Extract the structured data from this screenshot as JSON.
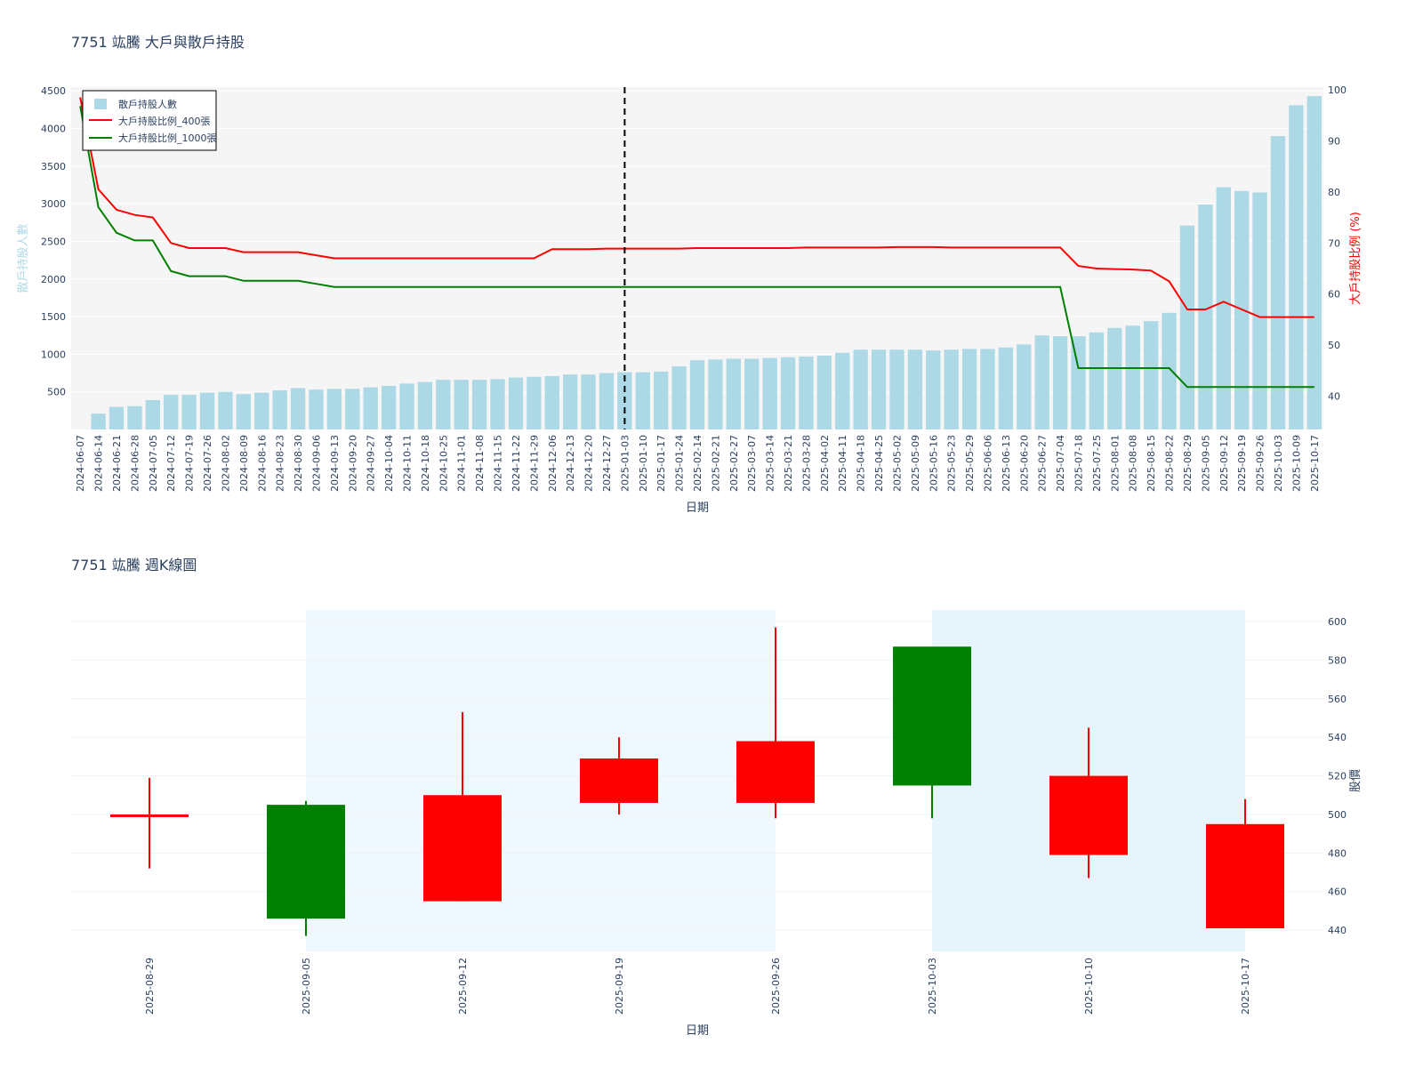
{
  "colors": {
    "bar": "#ADD8E6",
    "line400": "#FF0000",
    "line1000": "#008000",
    "up": "#FF0000",
    "down": "#008000",
    "plot_bg_top": "#F5F5F5",
    "shade": "#F0F8FF",
    "shade_dark": "#E6F4FC"
  },
  "chart_data": [
    {
      "type": "bar",
      "title": "7751 竑騰 大戶與散戶持股",
      "xlabel": "日期",
      "ylabel": "散戶持股人數",
      "y2label": "大戶持股比例 (%)",
      "ylim": [
        0,
        4550
      ],
      "y2lim": [
        33.5,
        100.5
      ],
      "yticks": [
        500,
        1000,
        1500,
        2000,
        2500,
        3000,
        3500,
        4000,
        4500
      ],
      "y2ticks": [
        40,
        50,
        60,
        70,
        80,
        90,
        100
      ],
      "legend_position": "top-left",
      "grid": true,
      "vline_date": "2025-01-03",
      "categories": [
        "2024-06-07",
        "2024-06-14",
        "2024-06-21",
        "2024-06-28",
        "2024-07-05",
        "2024-07-12",
        "2024-07-19",
        "2024-07-26",
        "2024-08-02",
        "2024-08-09",
        "2024-08-16",
        "2024-08-23",
        "2024-08-30",
        "2024-09-06",
        "2024-09-13",
        "2024-09-20",
        "2024-09-27",
        "2024-10-04",
        "2024-10-11",
        "2024-10-18",
        "2024-10-25",
        "2024-11-01",
        "2024-11-08",
        "2024-11-15",
        "2024-11-22",
        "2024-11-29",
        "2024-12-06",
        "2024-12-13",
        "2024-12-20",
        "2024-12-27",
        "2025-01-03",
        "2025-01-10",
        "2025-01-17",
        "2025-01-24",
        "2025-02-14",
        "2025-02-21",
        "2025-02-27",
        "2025-03-07",
        "2025-03-14",
        "2025-03-21",
        "2025-03-28",
        "2025-04-02",
        "2025-04-11",
        "2025-04-18",
        "2025-04-25",
        "2025-05-02",
        "2025-05-09",
        "2025-05-16",
        "2025-05-23",
        "2025-05-29",
        "2025-06-06",
        "2025-06-13",
        "2025-06-20",
        "2025-06-27",
        "2025-07-04",
        "2025-07-18",
        "2025-07-25",
        "2025-08-01",
        "2025-08-08",
        "2025-08-15",
        "2025-08-22",
        "2025-08-29",
        "2025-09-05",
        "2025-09-12",
        "2025-09-19",
        "2025-09-26",
        "2025-10-03",
        "2025-10-09",
        "2025-10-17"
      ],
      "series": [
        {
          "name": "散戶持股人數",
          "kind": "bar",
          "values": [
            0,
            210,
            300,
            310,
            390,
            460,
            460,
            490,
            500,
            470,
            490,
            520,
            550,
            530,
            540,
            540,
            560,
            580,
            610,
            630,
            660,
            660,
            660,
            670,
            690,
            700,
            710,
            730,
            730,
            750,
            760,
            760,
            770,
            840,
            920,
            930,
            940,
            940,
            950,
            960,
            970,
            980,
            1020,
            1060,
            1060,
            1060,
            1060,
            1050,
            1060,
            1070,
            1070,
            1090,
            1130,
            1250,
            1240,
            1240,
            1290,
            1350,
            1380,
            1440,
            1550,
            2710,
            2990,
            3220,
            3170,
            3150,
            3900,
            4310,
            4430
          ]
        },
        {
          "name": "大戶持股比例_400張",
          "kind": "line",
          "values": [
            98.5,
            80.5,
            76.5,
            75.5,
            75.0,
            70.0,
            69.0,
            69.0,
            69.0,
            68.2,
            68.2,
            68.2,
            68.2,
            67.6,
            67.0,
            67.0,
            67.0,
            67.0,
            67.0,
            67.0,
            67.0,
            67.0,
            67.0,
            67.0,
            67.0,
            67.0,
            68.8,
            68.8,
            68.8,
            68.9,
            68.9,
            68.9,
            68.9,
            68.9,
            69.0,
            69.0,
            69.0,
            69.0,
            69.0,
            69.0,
            69.1,
            69.1,
            69.1,
            69.1,
            69.1,
            69.2,
            69.2,
            69.2,
            69.1,
            69.1,
            69.1,
            69.1,
            69.1,
            69.1,
            69.1,
            65.5,
            65.0,
            64.9,
            64.8,
            64.6,
            62.5,
            57.0,
            57.0,
            58.5,
            57.0,
            55.5,
            55.5,
            55.5,
            55.5
          ]
        },
        {
          "name": "大戶持股比例_1000張",
          "kind": "line",
          "values": [
            96.8,
            77.0,
            72.0,
            70.5,
            70.5,
            64.5,
            63.5,
            63.5,
            63.5,
            62.6,
            62.6,
            62.6,
            62.6,
            62.0,
            61.4,
            61.4,
            61.4,
            61.4,
            61.4,
            61.4,
            61.4,
            61.4,
            61.4,
            61.4,
            61.4,
            61.4,
            61.4,
            61.4,
            61.4,
            61.4,
            61.4,
            61.4,
            61.4,
            61.4,
            61.4,
            61.4,
            61.4,
            61.4,
            61.4,
            61.4,
            61.4,
            61.4,
            61.4,
            61.4,
            61.4,
            61.4,
            61.4,
            61.4,
            61.4,
            61.4,
            61.4,
            61.4,
            61.4,
            61.4,
            61.4,
            45.5,
            45.5,
            45.5,
            45.5,
            45.5,
            45.5,
            41.8,
            41.8,
            41.8,
            41.8,
            41.8,
            41.8,
            41.8,
            41.8
          ]
        }
      ]
    },
    {
      "type": "candlestick",
      "title": "7751 竑騰 週K線圖",
      "xlabel": "日期",
      "ylabel": "股價",
      "ylim": [
        429,
        606
      ],
      "yticks": [
        440,
        460,
        480,
        500,
        520,
        540,
        560,
        580,
        600
      ],
      "grid": true,
      "categories": [
        "2025-08-29",
        "2025-09-05",
        "2025-09-12",
        "2025-09-19",
        "2025-09-26",
        "2025-10-03",
        "2025-10-10",
        "2025-10-17"
      ],
      "open": [
        499,
        505,
        455,
        506,
        506,
        587,
        479,
        441
      ],
      "high": [
        519,
        507,
        553,
        540,
        597,
        587,
        545,
        508
      ],
      "low": [
        472,
        437,
        455,
        500,
        498,
        498,
        467,
        441
      ],
      "close": [
        500,
        446,
        510,
        529,
        538,
        515,
        520,
        495
      ]
    }
  ]
}
